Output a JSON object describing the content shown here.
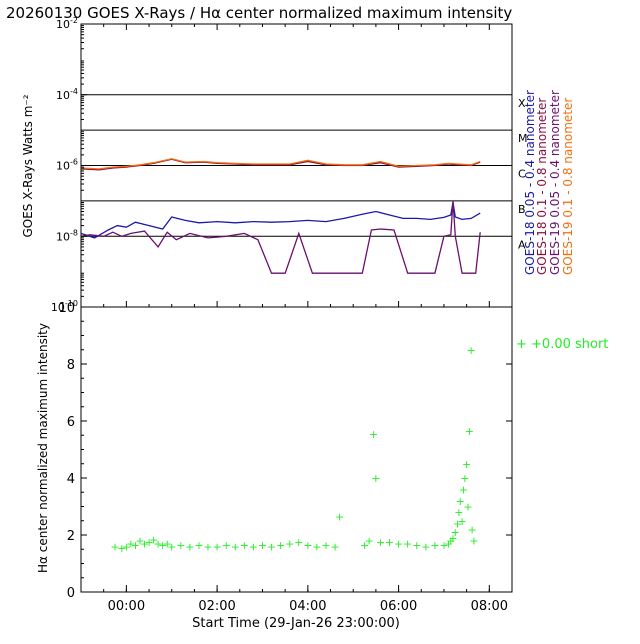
{
  "title": "20260130 GOES X-Rays / Hα center normalized maximum intensity",
  "chart_data": [
    {
      "type": "line",
      "name": "goes-xray",
      "ylabel": "GOES X-Rays Watts m⁻²",
      "yscale": "log",
      "ylim": [
        1e-10,
        0.01
      ],
      "xlim": [
        -1.0,
        8.5
      ],
      "y_ticks": [
        {
          "base": "10",
          "exp": "-10",
          "value": 1e-10
        },
        {
          "base": "10",
          "exp": "-8",
          "value": 1e-08
        },
        {
          "base": "10",
          "exp": "-6",
          "value": 1e-06
        },
        {
          "base": "10",
          "exp": "-4",
          "value": 0.0001
        },
        {
          "base": "10",
          "exp": "-2",
          "value": 0.01
        }
      ],
      "class_levels": [
        {
          "label": "A",
          "value": 1e-08
        },
        {
          "label": "B",
          "value": 1e-07
        },
        {
          "label": "C",
          "value": 1e-06
        },
        {
          "label": "M",
          "value": 1e-05
        },
        {
          "label": "X",
          "value": 0.0001
        }
      ],
      "series": [
        {
          "name": "GOES-18 0.05 - 0.4 nanometer",
          "color": "#1a1aa8",
          "x": [
            -1.0,
            -0.7,
            -0.4,
            -0.2,
            0.0,
            0.2,
            0.5,
            0.8,
            1.0,
            1.3,
            1.6,
            2.0,
            2.4,
            2.8,
            3.2,
            3.6,
            4.0,
            4.4,
            4.8,
            5.2,
            5.5,
            5.8,
            6.1,
            6.4,
            6.7,
            7.0,
            7.15,
            7.2,
            7.25,
            7.4,
            7.6,
            7.8
          ],
          "y": [
            1.2e-08,
            9e-09,
            1.5e-08,
            2e-08,
            1.8e-08,
            2.5e-08,
            2e-08,
            1.6e-08,
            3.5e-08,
            2.8e-08,
            2.4e-08,
            2.6e-08,
            2.4e-08,
            2.6e-08,
            2.5e-08,
            2.6e-08,
            2.8e-08,
            2.6e-08,
            3.2e-08,
            4.2e-08,
            5e-08,
            4e-08,
            3.2e-08,
            3.2e-08,
            3e-08,
            3.4e-08,
            4e-08,
            9e-08,
            3.5e-08,
            3e-08,
            3.2e-08,
            4.5e-08
          ]
        },
        {
          "name": "GOES-18 0.1 - 0.8 nanometer",
          "color": "#8a1040",
          "x": [
            -1.0,
            -0.6,
            -0.3,
            0.0,
            0.3,
            0.6,
            1.0,
            1.3,
            1.7,
            2.0,
            2.4,
            2.8,
            3.2,
            3.6,
            4.0,
            4.4,
            4.8,
            5.2,
            5.6,
            6.0,
            6.4,
            6.8,
            7.1,
            7.3,
            7.6,
            7.8
          ],
          "y": [
            8e-07,
            7.5e-07,
            8.5e-07,
            9e-07,
            1e-06,
            1.15e-06,
            1.5e-06,
            1.2e-06,
            1.25e-06,
            1.15e-06,
            1.1e-06,
            1.05e-06,
            1.05e-06,
            1.05e-06,
            1.3e-06,
            1.05e-06,
            1e-06,
            1e-06,
            1.2e-06,
            9e-07,
            9.5e-07,
            1e-06,
            1.1e-06,
            1.05e-06,
            1e-06,
            1.25e-06
          ]
        },
        {
          "name": "GOES-19 0.05 - 0.4 nanometer",
          "color": "#6a1070",
          "x": [
            -1.0,
            -0.8,
            -0.5,
            -0.3,
            -0.1,
            0.1,
            0.4,
            0.7,
            0.9,
            1.1,
            1.4,
            1.8,
            2.2,
            2.6,
            2.9,
            3.2,
            3.5,
            3.8,
            4.1,
            4.3,
            4.6,
            4.9,
            5.2,
            5.4,
            5.6,
            5.9,
            6.2,
            6.5,
            6.8,
            7.0,
            7.15,
            7.2,
            7.25,
            7.4,
            7.7,
            7.8
          ],
          "y": [
            1e-08,
            1.1e-08,
            1e-08,
            1.3e-08,
            1e-08,
            1.2e-08,
            1.4e-08,
            5e-09,
            1.3e-08,
            8e-09,
            1.2e-08,
            9e-09,
            1e-08,
            1.2e-08,
            8e-09,
            9e-10,
            9e-10,
            1.2e-08,
            9e-10,
            9e-10,
            9e-10,
            9e-10,
            9e-10,
            1.5e-08,
            1.6e-08,
            1.5e-08,
            9e-10,
            9e-10,
            9e-10,
            1e-08,
            1.1e-08,
            1e-07,
            1e-08,
            9e-10,
            9e-10,
            1.3e-08
          ]
        },
        {
          "name": "GOES-19 0.1 - 0.8 nanometer",
          "color": "#f07010",
          "x": [
            -1.0,
            -0.6,
            -0.3,
            0.0,
            0.3,
            0.6,
            1.0,
            1.3,
            1.7,
            2.0,
            2.4,
            2.8,
            3.2,
            3.6,
            4.0,
            4.4,
            4.8,
            5.2,
            5.6,
            6.0,
            6.4,
            6.8,
            7.1,
            7.3,
            7.6,
            7.8
          ],
          "y": [
            8.5e-07,
            8e-07,
            9e-07,
            9.5e-07,
            1.05e-06,
            1.2e-06,
            1.55e-06,
            1.25e-06,
            1.3e-06,
            1.2e-06,
            1.15e-06,
            1.1e-06,
            1.1e-06,
            1.1e-06,
            1.4e-06,
            1.1e-06,
            1.05e-06,
            1.05e-06,
            1.3e-06,
            9.5e-07,
            1e-06,
            1.05e-06,
            1.15e-06,
            1.1e-06,
            1.05e-06,
            1.3e-06
          ]
        }
      ]
    },
    {
      "type": "scatter",
      "name": "h-alpha",
      "ylabel": "Hα center normalized maximum intensity",
      "xlabel": "Start Time (29-Jan-26 23:00:00)",
      "ylim": [
        0,
        10
      ],
      "xlim": [
        -1.0,
        8.5
      ],
      "y_ticks": [
        "0",
        "2",
        "4",
        "6",
        "8",
        "10"
      ],
      "x_ticks": [
        {
          "label": "00:00",
          "value": 0
        },
        {
          "label": "02:00",
          "value": 2
        },
        {
          "label": "04:00",
          "value": 4
        },
        {
          "label": "06:00",
          "value": 6
        },
        {
          "label": "08:00",
          "value": 8
        }
      ],
      "legend": {
        "symbol": "+",
        "text": "+0.00 short",
        "color": "#22ee22",
        "position": "right"
      },
      "series": [
        {
          "name": "+0.00 short",
          "color": "#22ee22",
          "x": [
            -0.25,
            -0.1,
            0.0,
            0.1,
            0.2,
            0.3,
            0.4,
            0.5,
            0.6,
            0.7,
            0.8,
            0.9,
            1.0,
            1.2,
            1.4,
            1.6,
            1.8,
            2.0,
            2.2,
            2.4,
            2.6,
            2.8,
            3.0,
            3.2,
            3.4,
            3.6,
            3.8,
            4.0,
            4.2,
            4.4,
            4.6,
            4.7,
            5.25,
            5.35,
            5.45,
            5.5,
            5.6,
            5.8,
            6.0,
            6.2,
            6.4,
            6.6,
            6.8,
            7.0,
            7.1,
            7.15,
            7.2,
            7.25,
            7.3,
            7.33,
            7.36,
            7.4,
            7.43,
            7.46,
            7.5,
            7.53,
            7.56,
            7.6,
            7.62,
            7.66
          ],
          "y": [
            1.6,
            1.55,
            1.6,
            1.7,
            1.65,
            1.8,
            1.7,
            1.75,
            1.85,
            1.7,
            1.65,
            1.7,
            1.6,
            1.65,
            1.6,
            1.65,
            1.6,
            1.6,
            1.65,
            1.6,
            1.65,
            1.6,
            1.65,
            1.6,
            1.65,
            1.7,
            1.75,
            1.65,
            1.6,
            1.65,
            1.6,
            2.65,
            1.65,
            1.8,
            5.55,
            4.0,
            1.75,
            1.75,
            1.7,
            1.7,
            1.65,
            1.6,
            1.65,
            1.65,
            1.7,
            1.8,
            1.9,
            2.1,
            2.4,
            2.8,
            3.2,
            2.5,
            3.6,
            4.0,
            4.5,
            3.0,
            5.65,
            8.5,
            2.2,
            1.8
          ]
        }
      ]
    }
  ]
}
